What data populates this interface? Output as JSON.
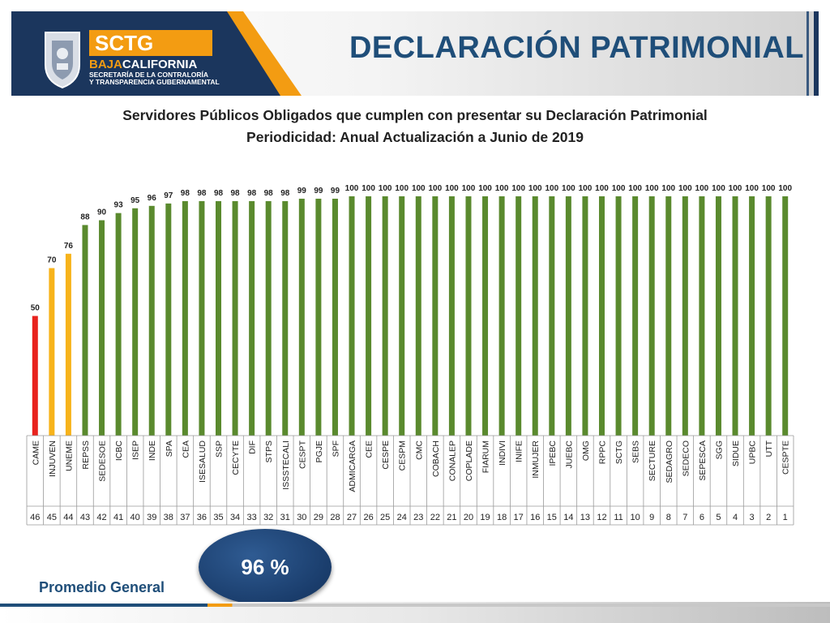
{
  "header": {
    "brand_name": "SCTG",
    "brand_region_a": "BAJA",
    "brand_region_b": "CALIFORNIA",
    "agency_line1": "SECRETARÍA DE LA CONTRALORÍA",
    "agency_line2": "Y TRANSPARENCIA GUBERNAMENTAL",
    "title": "DECLARACIÓN PATRIMONIAL",
    "colors": {
      "navy": "#1b365d",
      "orange": "#f39c12",
      "title": "#1f4e79"
    }
  },
  "subtitle_line1": "Servidores Públicos Obligados que cumplen con presentar su Declaración Patrimonial",
  "subtitle_line2": "Periodicidad: Anual  Actualización a Junio de 2019",
  "chart_data": {
    "type": "bar",
    "categories": [
      "CAME",
      "INJUVEN",
      "UNEME",
      "REPSS",
      "SEDESOE",
      "ICBC",
      "ISEP",
      "INDE",
      "SPA",
      "CEA",
      "ISESALUD",
      "SSP",
      "CECYTE",
      "DIF",
      "STPS",
      "ISSSTECALI",
      "CESPT",
      "PGJE",
      "SPF",
      "ADMICARGA",
      "CEE",
      "CESPE",
      "CESPM",
      "CMC",
      "COBACH",
      "CONALEP",
      "COPLADE",
      "FIARUM",
      "INDIVI",
      "INIFE",
      "INMUJER",
      "IPEBC",
      "JUEBC",
      "OMG",
      "RPPC",
      "SCTG",
      "SEBS",
      "SECTURE",
      "SEDAGRO",
      "SEDECO",
      "SEPESCA",
      "SGG",
      "SIDUE",
      "UPBC",
      "UTT",
      "CESPTE"
    ],
    "ranks": [
      "46",
      "45",
      "44",
      "43",
      "42",
      "41",
      "40",
      "39",
      "38",
      "37",
      "36",
      "35",
      "34",
      "33",
      "32",
      "31",
      "30",
      "29",
      "28",
      "27",
      "26",
      "25",
      "24",
      "23",
      "22",
      "21",
      "20",
      "19",
      "18",
      "17",
      "16",
      "15",
      "14",
      "13",
      "12",
      "11",
      "10",
      "9",
      "8",
      "7",
      "6",
      "5",
      "4",
      "3",
      "2",
      "1"
    ],
    "values": [
      50,
      70,
      76,
      88,
      90,
      93,
      95,
      96,
      97,
      98,
      98,
      98,
      98,
      98,
      98,
      98,
      99,
      99,
      99,
      100,
      100,
      100,
      100,
      100,
      100,
      100,
      100,
      100,
      100,
      100,
      100,
      100,
      100,
      100,
      100,
      100,
      100,
      100,
      100,
      100,
      100,
      100,
      100,
      100,
      100,
      100
    ],
    "ylim": [
      0,
      100
    ],
    "grid": false,
    "legend": "none",
    "colors": {
      "low": "#e8231e",
      "mid": "#f7b31b",
      "high": "#5a8a2e"
    }
  },
  "summary": {
    "label": "Promedio General",
    "value": "96 %"
  }
}
